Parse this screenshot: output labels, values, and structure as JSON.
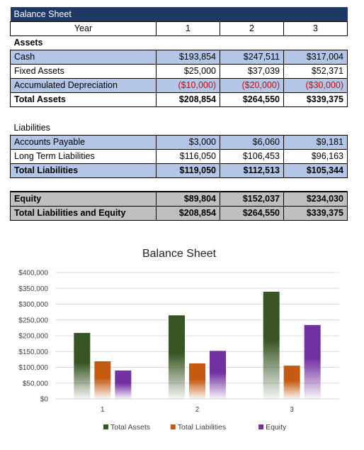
{
  "sheet": {
    "title": "Balance Sheet",
    "header": {
      "label": "Year",
      "years": [
        "1",
        "2",
        "3"
      ]
    },
    "assets": {
      "heading": "Assets",
      "rows": [
        {
          "label": "Cash",
          "values": [
            "$193,854",
            "$247,511",
            "$317,004"
          ]
        },
        {
          "label": "Fixed Assets",
          "values": [
            "$25,000",
            "$37,039",
            "$52,371"
          ]
        },
        {
          "label": "Accumulated Depreciation",
          "values": [
            "($10,000)",
            "($20,000)",
            "($30,000)"
          ]
        }
      ],
      "total": {
        "label": "Total Assets",
        "values": [
          "$208,854",
          "$264,550",
          "$339,375"
        ]
      }
    },
    "liabilities": {
      "heading": "Liabilities",
      "rows": [
        {
          "label": "Accounts Payable",
          "values": [
            "$3,000",
            "$6,060",
            "$9,181"
          ]
        },
        {
          "label": "Long Term Liabilities",
          "values": [
            "$116,050",
            "$106,453",
            "$96,163"
          ]
        }
      ],
      "total": {
        "label": "Total Liabilities",
        "values": [
          "$119,050",
          "$112,513",
          "$105,344"
        ]
      }
    },
    "equity": {
      "row": {
        "label": "Equity",
        "values": [
          "$89,804",
          "$152,037",
          "$234,030"
        ]
      },
      "total": {
        "label": "Total Liabilities and Equity",
        "values": [
          "$208,854",
          "$264,550",
          "$339,375"
        ]
      }
    }
  },
  "colors": {
    "header_bg": "#1f3864",
    "row_blue": "#b4c6e7",
    "row_gray": "#bfbfbf",
    "negative": "#e00000",
    "total_assets": "#375623",
    "total_liabilities": "#c55a11",
    "equity": "#7030a0"
  },
  "chart_data": {
    "type": "bar",
    "title": "Balance Sheet",
    "categories": [
      "1",
      "2",
      "3"
    ],
    "series": [
      {
        "name": "Total Assets",
        "values": [
          208854,
          264550,
          339375
        ],
        "color": "#375623"
      },
      {
        "name": "Total Liabilities",
        "values": [
          119050,
          112513,
          105344
        ],
        "color": "#c55a11"
      },
      {
        "name": "Equity",
        "values": [
          89804,
          152037,
          234030
        ],
        "color": "#7030a0"
      }
    ],
    "ylim": [
      0,
      400000
    ],
    "yticks": [
      0,
      50000,
      100000,
      150000,
      200000,
      250000,
      300000,
      350000,
      400000
    ],
    "ytick_labels": [
      "$0",
      "$50,000",
      "$100,000",
      "$150,000",
      "$200,000",
      "$250,000",
      "$300,000",
      "$350,000",
      "$400,000"
    ],
    "grid": true,
    "legend": "bottom",
    "fill": "gradient"
  }
}
